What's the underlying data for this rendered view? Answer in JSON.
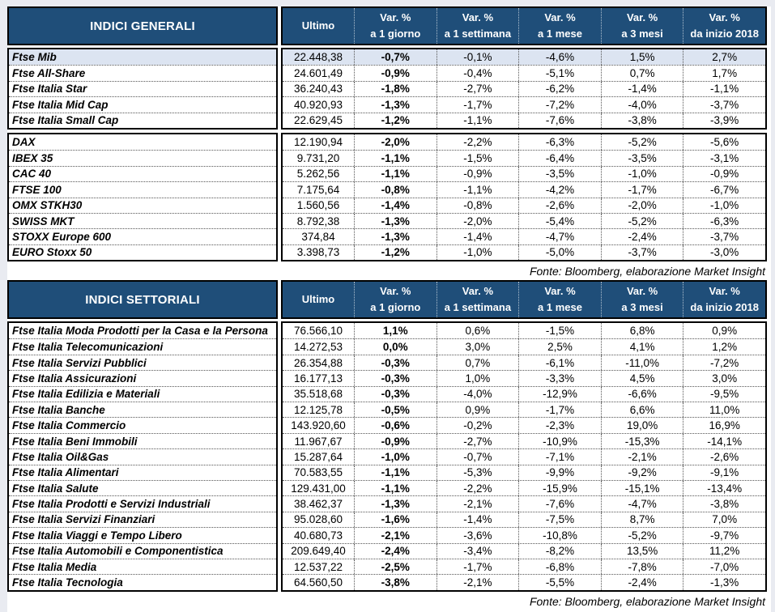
{
  "colors": {
    "header_bg": "#1F4E79",
    "header_text": "#FFFFFF",
    "highlight_row": "#DCE4F1",
    "border": "#000000"
  },
  "fonte": "Fonte: Bloomberg, elaborazione Market Insight",
  "columns": {
    "ultimo": "Ultimo",
    "vars": [
      {
        "l1": "Var. %",
        "l2": "a 1 giorno"
      },
      {
        "l1": "Var. %",
        "l2": "a 1 settimana"
      },
      {
        "l1": "Var. %",
        "l2": "a 1 mese"
      },
      {
        "l1": "Var. %",
        "l2": "a 3 mesi"
      },
      {
        "l1": "Var. %",
        "l2": "da inizio 2018"
      }
    ]
  },
  "tables": [
    {
      "title": "INDICI GENERALI",
      "groups": [
        {
          "rows": [
            {
              "name": "Ftse Mib",
              "highlight": true,
              "values": [
                "22.448,38",
                "-0,7%",
                "-0,1%",
                "-4,6%",
                "1,5%",
                "2,7%"
              ]
            },
            {
              "name": "Ftse All-Share",
              "values": [
                "24.601,49",
                "-0,9%",
                "-0,4%",
                "-5,1%",
                "0,7%",
                "1,7%"
              ]
            },
            {
              "name": "Ftse Italia Star",
              "values": [
                "36.240,43",
                "-1,8%",
                "-2,7%",
                "-6,2%",
                "-1,4%",
                "-1,1%"
              ]
            },
            {
              "name": "Ftse Italia Mid Cap",
              "values": [
                "40.920,93",
                "-1,3%",
                "-1,7%",
                "-7,2%",
                "-4,0%",
                "-3,7%"
              ]
            },
            {
              "name": "Ftse Italia Small Cap",
              "values": [
                "22.629,45",
                "-1,2%",
                "-1,1%",
                "-7,6%",
                "-3,8%",
                "-3,9%"
              ]
            }
          ]
        },
        {
          "rows": [
            {
              "name": "DAX",
              "values": [
                "12.190,94",
                "-2,0%",
                "-2,2%",
                "-6,3%",
                "-5,2%",
                "-5,6%"
              ]
            },
            {
              "name": "IBEX 35",
              "values": [
                "9.731,20",
                "-1,1%",
                "-1,5%",
                "-6,4%",
                "-3,5%",
                "-3,1%"
              ]
            },
            {
              "name": "CAC 40",
              "values": [
                "5.262,56",
                "-1,1%",
                "-0,9%",
                "-3,5%",
                "-1,0%",
                "-0,9%"
              ]
            },
            {
              "name": "FTSE 100",
              "values": [
                "7.175,64",
                "-0,8%",
                "-1,1%",
                "-4,2%",
                "-1,7%",
                "-6,7%"
              ]
            },
            {
              "name": "OMX STKH30",
              "values": [
                "1.560,56",
                "-1,4%",
                "-0,8%",
                "-2,6%",
                "-2,0%",
                "-1,0%"
              ]
            },
            {
              "name": "SWISS MKT",
              "values": [
                "8.792,38",
                "-1,3%",
                "-2,0%",
                "-5,4%",
                "-5,2%",
                "-6,3%"
              ]
            },
            {
              "name": "STOXX Europe 600",
              "values": [
                "374,84",
                "-1,3%",
                "-1,4%",
                "-4,7%",
                "-2,4%",
                "-3,7%"
              ]
            },
            {
              "name": "EURO Stoxx 50",
              "values": [
                "3.398,73",
                "-1,2%",
                "-1,0%",
                "-5,0%",
                "-3,7%",
                "-3,0%"
              ]
            }
          ]
        }
      ]
    },
    {
      "title": "INDICI SETTORIALI",
      "groups": [
        {
          "rows": [
            {
              "name": "Ftse Italia Moda Prodotti per la Casa e la Persona",
              "values": [
                "76.566,10",
                "1,1%",
                "0,6%",
                "-1,5%",
                "6,8%",
                "0,9%"
              ]
            },
            {
              "name": "Ftse Italia Telecomunicazioni",
              "values": [
                "14.272,53",
                "0,0%",
                "3,0%",
                "2,5%",
                "4,1%",
                "1,2%"
              ]
            },
            {
              "name": "Ftse Italia Servizi Pubblici",
              "values": [
                "26.354,88",
                "-0,3%",
                "0,7%",
                "-6,1%",
                "-11,0%",
                "-7,2%"
              ]
            },
            {
              "name": "Ftse Italia Assicurazioni",
              "values": [
                "16.177,13",
                "-0,3%",
                "1,0%",
                "-3,3%",
                "4,5%",
                "3,0%"
              ]
            },
            {
              "name": "Ftse Italia Edilizia e Materiali",
              "values": [
                "35.518,68",
                "-0,3%",
                "-4,0%",
                "-12,9%",
                "-6,6%",
                "-9,5%"
              ]
            },
            {
              "name": "Ftse Italia Banche",
              "values": [
                "12.125,78",
                "-0,5%",
                "0,9%",
                "-1,7%",
                "6,6%",
                "11,0%"
              ]
            },
            {
              "name": "Ftse Italia Commercio",
              "values": [
                "143.920,60",
                "-0,6%",
                "-0,2%",
                "-2,3%",
                "19,0%",
                "16,9%"
              ]
            },
            {
              "name": "Ftse Italia Beni Immobili",
              "values": [
                "11.967,67",
                "-0,9%",
                "-2,7%",
                "-10,9%",
                "-15,3%",
                "-14,1%"
              ]
            },
            {
              "name": "Ftse Italia Oil&Gas",
              "values": [
                "15.287,64",
                "-1,0%",
                "-0,7%",
                "-7,1%",
                "-2,1%",
                "-2,6%"
              ]
            },
            {
              "name": "Ftse Italia Alimentari",
              "values": [
                "70.583,55",
                "-1,1%",
                "-5,3%",
                "-9,9%",
                "-9,2%",
                "-9,1%"
              ]
            },
            {
              "name": "Ftse Italia Salute",
              "values": [
                "129.431,00",
                "-1,1%",
                "-2,2%",
                "-15,9%",
                "-15,1%",
                "-13,4%"
              ]
            },
            {
              "name": "Ftse Italia Prodotti e Servizi Industriali",
              "values": [
                "38.462,37",
                "-1,3%",
                "-2,1%",
                "-7,6%",
                "-4,7%",
                "-3,8%"
              ]
            },
            {
              "name": "Ftse Italia Servizi Finanziari",
              "values": [
                "95.028,60",
                "-1,6%",
                "-1,4%",
                "-7,5%",
                "8,7%",
                "7,0%"
              ]
            },
            {
              "name": "Ftse Italia Viaggi e Tempo Libero",
              "values": [
                "40.680,73",
                "-2,1%",
                "-3,6%",
                "-10,8%",
                "-5,2%",
                "-9,7%"
              ]
            },
            {
              "name": "Ftse Italia Automobili e Componentistica",
              "values": [
                "209.649,40",
                "-2,4%",
                "-3,4%",
                "-8,2%",
                "13,5%",
                "11,2%"
              ]
            },
            {
              "name": "Ftse Italia Media",
              "values": [
                "12.537,22",
                "-2,5%",
                "-1,7%",
                "-6,8%",
                "-7,8%",
                "-7,0%"
              ]
            },
            {
              "name": "Ftse Italia Tecnologia",
              "values": [
                "64.560,50",
                "-3,8%",
                "-2,1%",
                "-5,5%",
                "-2,4%",
                "-1,3%"
              ]
            }
          ]
        }
      ]
    }
  ]
}
